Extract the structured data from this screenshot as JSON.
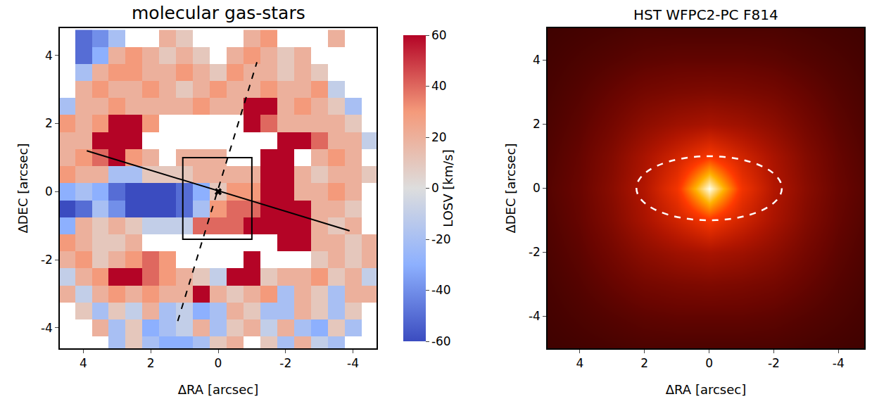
{
  "chart_data": [
    {
      "type": "heatmap",
      "title": "molecular gas-stars",
      "x_label": "ΔRA [arcsec]",
      "y_label": "ΔDEC [arcsec]",
      "x": [
        4.5,
        4,
        3.5,
        3,
        2.5,
        2,
        1.5,
        1,
        0.5,
        0,
        -0.5,
        -1,
        -1.5,
        -2,
        -2.5,
        -3,
        -3.5,
        -4,
        -4.5
      ],
      "y": [
        4.5,
        4,
        3.5,
        3,
        2.5,
        2,
        1.5,
        1,
        0.5,
        0,
        -0.5,
        -1,
        -1.5,
        -2,
        -2.5,
        -3,
        -3.5,
        -4,
        -4.5
      ],
      "z": [
        [
          null,
          -50,
          -40,
          -20,
          null,
          null,
          20,
          10,
          null,
          null,
          null,
          20,
          30,
          null,
          null,
          null,
          20,
          null,
          null
        ],
        [
          null,
          -50,
          -30,
          20,
          30,
          20,
          10,
          20,
          10,
          null,
          20,
          30,
          20,
          10,
          20,
          null,
          null,
          null,
          null
        ],
        [
          null,
          -20,
          20,
          30,
          30,
          20,
          20,
          30,
          20,
          10,
          30,
          20,
          20,
          10,
          20,
          10,
          null,
          null,
          null
        ],
        [
          null,
          20,
          30,
          20,
          20,
          30,
          20,
          10,
          20,
          30,
          20,
          20,
          30,
          20,
          20,
          30,
          -10,
          null,
          null
        ],
        [
          -20,
          20,
          20,
          30,
          20,
          20,
          20,
          20,
          30,
          20,
          20,
          60,
          60,
          20,
          30,
          20,
          10,
          -20,
          null
        ],
        [
          30,
          20,
          30,
          60,
          60,
          30,
          null,
          null,
          null,
          null,
          null,
          60,
          40,
          20,
          20,
          20,
          20,
          10,
          null
        ],
        [
          20,
          20,
          60,
          60,
          60,
          null,
          null,
          null,
          null,
          null,
          null,
          null,
          null,
          60,
          60,
          40,
          20,
          20,
          -10
        ],
        [
          20,
          30,
          40,
          60,
          30,
          20,
          null,
          20,
          20,
          20,
          null,
          null,
          60,
          60,
          null,
          20,
          30,
          20,
          null
        ],
        [
          30,
          20,
          20,
          -20,
          -20,
          10,
          10,
          10,
          20,
          20,
          20,
          20,
          60,
          60,
          20,
          10,
          20,
          20,
          10
        ],
        [
          -30,
          -20,
          -30,
          -50,
          -60,
          -60,
          -60,
          -50,
          -30,
          10,
          30,
          30,
          60,
          60,
          20,
          20,
          30,
          20,
          null
        ],
        [
          -60,
          -50,
          -20,
          -40,
          -60,
          -60,
          -60,
          -50,
          -20,
          30,
          40,
          40,
          60,
          60,
          60,
          20,
          20,
          10,
          null
        ],
        [
          -30,
          20,
          10,
          20,
          10,
          -10,
          -10,
          -10,
          40,
          40,
          40,
          60,
          60,
          60,
          60,
          20,
          10,
          20,
          null
        ],
        [
          30,
          20,
          10,
          10,
          20,
          null,
          null,
          null,
          null,
          null,
          null,
          null,
          null,
          60,
          60,
          20,
          20,
          10,
          20
        ],
        [
          20,
          30,
          10,
          20,
          30,
          40,
          30,
          null,
          null,
          null,
          null,
          60,
          null,
          null,
          null,
          10,
          20,
          10,
          20
        ],
        [
          -10,
          20,
          30,
          60,
          60,
          40,
          30,
          20,
          10,
          -10,
          60,
          60,
          10,
          20,
          20,
          30,
          10,
          20,
          -10
        ],
        [
          20,
          -10,
          20,
          30,
          20,
          30,
          20,
          20,
          60,
          20,
          10,
          20,
          30,
          -20,
          20,
          10,
          -20,
          20,
          20
        ],
        [
          null,
          10,
          -20,
          10,
          -10,
          20,
          -20,
          -10,
          -30,
          -20,
          20,
          10,
          -20,
          -20,
          20,
          10,
          -20,
          10,
          null
        ],
        [
          null,
          null,
          20,
          -20,
          10,
          -30,
          -20,
          -10,
          20,
          -20,
          10,
          20,
          -10,
          20,
          -20,
          -30,
          10,
          -20,
          null
        ],
        [
          null,
          null,
          null,
          -20,
          10,
          -20,
          -30,
          -30,
          -20,
          10,
          20,
          null,
          10,
          -20,
          20,
          -10,
          -20,
          null,
          null
        ]
      ],
      "xlim": [
        4.7,
        -4.7
      ],
      "ylim": [
        -4.6,
        4.8
      ],
      "xticks": [
        4,
        2,
        0,
        -2,
        -4
      ],
      "yticks": [
        -4,
        -2,
        0,
        2,
        4
      ],
      "colorbar": {
        "title": "LOSV [km/s]",
        "zlim": [
          -60,
          60
        ],
        "zticks": [
          -60,
          -40,
          -20,
          0,
          20,
          40,
          60
        ]
      },
      "lines": [
        {
          "x": [
            3.9,
            -3.9
          ],
          "y": [
            1.2,
            -1.15
          ],
          "line_style": "solid",
          "color": "#000000"
        },
        {
          "x": [
            1.2,
            -1.15
          ],
          "y": [
            -3.8,
            3.8
          ],
          "line_style": "dash",
          "color": "#000000"
        }
      ],
      "box": {
        "x": [
          1.05,
          -1.0
        ],
        "y": [
          -1.4,
          1.0
        ],
        "color": "#000000"
      },
      "center": {
        "x": 0,
        "y": 0,
        "marker": "x",
        "color": "#000000"
      }
    },
    {
      "type": "image",
      "title": "HST WFPC2-PC F814",
      "x_label": "ΔRA [arcsec]",
      "y_label": "ΔDEC [arcsec]",
      "x": [
        5,
        4,
        3,
        2,
        1,
        0,
        -1,
        -2,
        -3,
        -4,
        -5
      ],
      "y": [
        5,
        4,
        3,
        2,
        1,
        0,
        -1,
        -2,
        -3,
        -4,
        -5
      ],
      "z": [
        [
          0.05,
          0.06,
          0.07,
          0.08,
          0.08,
          0.08,
          0.08,
          0.08,
          0.07,
          0.06,
          0.05
        ],
        [
          0.06,
          0.08,
          0.1,
          0.12,
          0.13,
          0.13,
          0.13,
          0.12,
          0.1,
          0.08,
          0.06
        ],
        [
          0.07,
          0.1,
          0.14,
          0.18,
          0.2,
          0.21,
          0.2,
          0.18,
          0.14,
          0.1,
          0.07
        ],
        [
          0.08,
          0.12,
          0.18,
          0.25,
          0.3,
          0.33,
          0.3,
          0.25,
          0.18,
          0.12,
          0.08
        ],
        [
          0.09,
          0.14,
          0.22,
          0.33,
          0.45,
          0.58,
          0.45,
          0.33,
          0.22,
          0.14,
          0.09
        ],
        [
          0.1,
          0.15,
          0.24,
          0.36,
          0.56,
          1.0,
          0.56,
          0.36,
          0.24,
          0.15,
          0.1
        ],
        [
          0.09,
          0.14,
          0.22,
          0.33,
          0.45,
          0.58,
          0.45,
          0.33,
          0.22,
          0.14,
          0.09
        ],
        [
          0.08,
          0.12,
          0.18,
          0.25,
          0.3,
          0.33,
          0.3,
          0.25,
          0.18,
          0.12,
          0.08
        ],
        [
          0.07,
          0.1,
          0.14,
          0.18,
          0.2,
          0.21,
          0.2,
          0.18,
          0.14,
          0.1,
          0.07
        ],
        [
          0.06,
          0.08,
          0.1,
          0.12,
          0.13,
          0.13,
          0.13,
          0.12,
          0.1,
          0.08,
          0.06
        ],
        [
          0.05,
          0.06,
          0.07,
          0.08,
          0.08,
          0.08,
          0.08,
          0.08,
          0.07,
          0.06,
          0.05
        ]
      ],
      "zlim": [
        0,
        1
      ],
      "xlim": [
        5,
        -4.8
      ],
      "ylim": [
        -5,
        5
      ],
      "xticks": [
        4,
        2,
        0,
        -2,
        -4
      ],
      "yticks": [
        -4,
        -2,
        0,
        2,
        4
      ],
      "ellipse": {
        "x": [
          2.25,
          -2.25
        ],
        "y": [
          -1,
          1
        ],
        "line_style": "dash",
        "color": "#ffffff"
      }
    }
  ]
}
